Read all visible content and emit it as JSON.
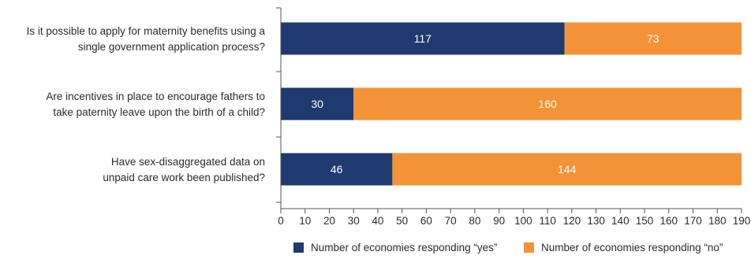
{
  "chart_data": {
    "type": "bar",
    "orientation": "horizontal",
    "stacked": true,
    "categories": [
      [
        "Is it possible to apply for maternity benefits using a",
        "single government application process?"
      ],
      [
        "Are incentives in place to encourage fathers to",
        "take paternity leave upon the birth of a child?"
      ],
      [
        "Have sex-disaggregated data on",
        "unpaid care work been published?"
      ]
    ],
    "series": [
      {
        "name": "Number of economies responding “yes”",
        "color": "#1f3a6e",
        "values": [
          117,
          30,
          46
        ]
      },
      {
        "name": "Number of economies responding “no”",
        "color": "#f39237",
        "values": [
          73,
          160,
          144
        ]
      }
    ],
    "xlim": [
      0,
      190
    ],
    "xticks": [
      0,
      10,
      20,
      30,
      40,
      50,
      60,
      70,
      80,
      90,
      100,
      110,
      120,
      130,
      140,
      150,
      160,
      170,
      180,
      190
    ],
    "grid": false,
    "legend_position": "bottom-right"
  }
}
